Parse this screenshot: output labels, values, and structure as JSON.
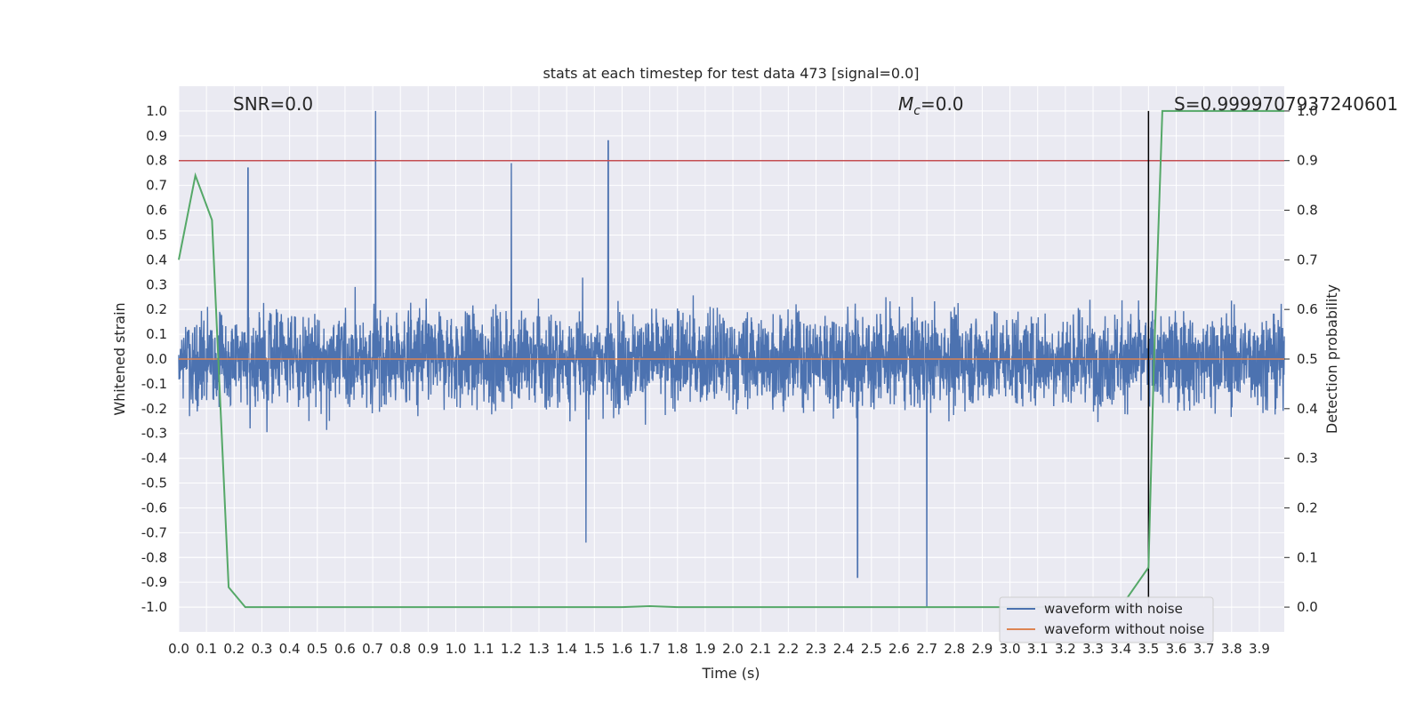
{
  "chart_data": {
    "type": "line",
    "title": "stats at each timestep for test data 473 [signal=0.0]",
    "xlabel": "Time (s)",
    "ylabel": "Whitened strain",
    "y2label": "Detection probability",
    "xlim": [
      0.0,
      3.99
    ],
    "ylim": [
      -1.1,
      1.1
    ],
    "y2lim": [
      -0.05,
      1.05
    ],
    "xticks": [
      0.0,
      0.1,
      0.2,
      0.3,
      0.4,
      0.5,
      0.6,
      0.7,
      0.8,
      0.9,
      1.0,
      1.1,
      1.2,
      1.3,
      1.4,
      1.5,
      1.6,
      1.7,
      1.8,
      1.9,
      2.0,
      2.1,
      2.2,
      2.3,
      2.4,
      2.5,
      2.6,
      2.7,
      2.8,
      2.9,
      3.0,
      3.1,
      3.2,
      3.3,
      3.4,
      3.5,
      3.6,
      3.7,
      3.8,
      3.9
    ],
    "xtick_labels": [
      "0.0",
      "0.1",
      "0.2",
      "0.3",
      "0.4",
      "0.5",
      "0.6",
      "0.7",
      "0.8",
      "0.9",
      "1.0",
      "1.1",
      "1.2",
      "1.3",
      "1.4",
      "1.5",
      "1.6",
      "1.7",
      "1.8",
      "1.9",
      "2.0",
      "2.1",
      "2.2",
      "2.3",
      "2.4",
      "2.5",
      "2.6",
      "2.7",
      "2.8",
      "2.9",
      "3.0",
      "3.1",
      "3.2",
      "3.3",
      "3.4",
      "3.5",
      "3.6",
      "3.7",
      "3.8",
      "3.9"
    ],
    "yticks": [
      1.0,
      0.9,
      0.8,
      0.7,
      0.6,
      0.5,
      0.4,
      0.3,
      0.2,
      0.1,
      0.0,
      -0.1,
      -0.2,
      -0.3,
      -0.4,
      -0.5,
      -0.6,
      -0.7,
      -0.8,
      -0.9,
      -1.0
    ],
    "ytick_labels": [
      "1.0",
      "0.9",
      "0.8",
      "0.7",
      "0.6",
      "0.5",
      "0.4",
      "0.3",
      "0.2",
      "0.1",
      "0.0",
      "-0.1",
      "-0.2",
      "-0.3",
      "-0.4",
      "-0.5",
      "-0.6",
      "-0.7",
      "-0.8",
      "-0.9",
      "-1.0"
    ],
    "y2ticks": [
      1.0,
      0.9,
      0.8,
      0.7,
      0.6,
      0.5,
      0.4,
      0.3,
      0.2,
      0.1,
      0.0
    ],
    "y2tick_labels": [
      "1.0",
      "0.9",
      "0.8",
      "0.7",
      "0.6",
      "0.5",
      "0.4",
      "0.3",
      "0.2",
      "0.1",
      "0.0"
    ],
    "annotations": {
      "snr": "SNR=0.0",
      "mc_symbol": "M",
      "mc_sub": "c",
      "mc_value": "=0.0",
      "s": "S=0.9999707937240601"
    },
    "series": [
      {
        "name": "waveform with noise",
        "color": "#4c72b0",
        "axis": "left",
        "kind": "noise",
        "amplitude": 0.3,
        "peaks": [
          [
            0.71,
            1.0
          ],
          [
            1.55,
            0.88
          ],
          [
            1.2,
            0.79
          ],
          [
            0.25,
            0.77
          ],
          [
            2.7,
            -1.0
          ],
          [
            2.45,
            -0.88
          ],
          [
            1.47,
            -0.74
          ]
        ]
      },
      {
        "name": "waveform without noise",
        "color": "#dd8452",
        "axis": "left",
        "kind": "constant",
        "value": 0.0
      },
      {
        "name": "detection probability",
        "color": "#55a868",
        "axis": "right",
        "x": [
          0.0,
          0.06,
          0.12,
          0.18,
          0.24,
          0.5,
          1.0,
          1.5,
          1.6,
          1.7,
          1.8,
          2.0,
          2.5,
          3.0,
          3.2,
          3.4,
          3.5,
          3.52,
          3.55,
          3.6,
          3.9,
          3.99
        ],
        "values": [
          0.7,
          0.87,
          0.78,
          0.04,
          0.0,
          0.0,
          0.0,
          0.0,
          0.0,
          0.002,
          0.0,
          0.0,
          0.0,
          0.0,
          0.0,
          0.0,
          0.08,
          0.5,
          1.0,
          1.0,
          1.0,
          1.0
        ]
      }
    ],
    "threshold": {
      "value": 0.9,
      "axis": "right",
      "color": "#c44e52"
    },
    "vline": {
      "x": 3.5,
      "color": "#000000"
    },
    "legend": {
      "placement": "lower right",
      "entries": [
        "waveform with noise",
        "waveform without noise"
      ]
    },
    "grid": true
  }
}
